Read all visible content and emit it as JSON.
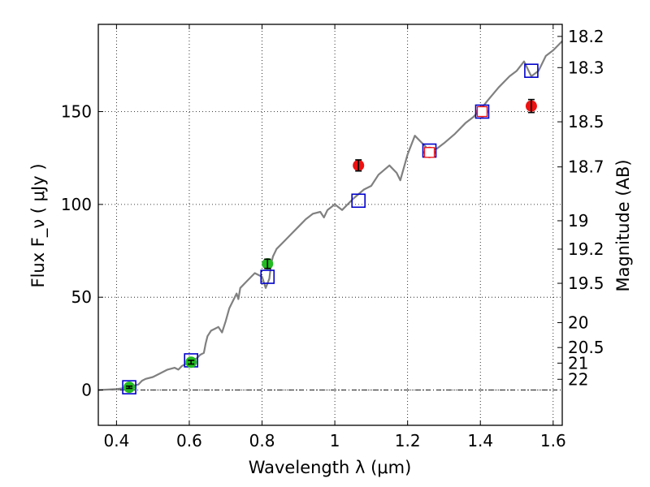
{
  "chart_data": {
    "type": "scatter",
    "title": "",
    "xlabel": "Wavelength  λ (μm)",
    "ylabel": "Flux  F_ν  ( μJy )",
    "ylabel_right": "Magnitude (AB)",
    "xlim": [
      0.35,
      1.625
    ],
    "ylim": [
      -19,
      197
    ],
    "x_ticks": [
      0.4,
      0.6,
      0.8,
      1.0,
      1.2,
      1.4,
      1.6
    ],
    "x_tick_labels": [
      "0.4",
      "0.6",
      "0.8",
      "1",
      "1.2",
      "1.4",
      "1.6"
    ],
    "y_ticks": [
      0,
      50,
      100,
      150
    ],
    "y_tick_labels": [
      "0",
      "50",
      "100",
      "150"
    ],
    "right_ticks": [
      {
        "label": "18.2",
        "flux": 190.5
      },
      {
        "label": "18.3",
        "flux": 173.7
      },
      {
        "label": "18.5",
        "flux": 144.5
      },
      {
        "label": "18.7",
        "flux": 120.2
      },
      {
        "label": "19",
        "flux": 91.2
      },
      {
        "label": "19.2",
        "flux": 75.9
      },
      {
        "label": "19.5",
        "flux": 57.5
      },
      {
        "label": "20",
        "flux": 36.3
      },
      {
        "label": "20.5",
        "flux": 22.9
      },
      {
        "label": "21",
        "flux": 14.5
      },
      {
        "label": "22",
        "flux": 5.8
      }
    ],
    "grid": true,
    "colors": {
      "model": "#808080",
      "synthetic": "#0000cc",
      "optical": "#22bb22",
      "nir": "#ee1111",
      "errorbar": "#000000",
      "hollow_marker_fill": "#ffffff"
    },
    "model_spectrum": {
      "x": [
        0.35,
        0.38,
        0.4,
        0.42,
        0.44,
        0.46,
        0.47,
        0.48,
        0.5,
        0.52,
        0.54,
        0.56,
        0.57,
        0.58,
        0.6,
        0.62,
        0.63,
        0.64,
        0.645,
        0.65,
        0.66,
        0.67,
        0.68,
        0.69,
        0.7,
        0.71,
        0.72,
        0.73,
        0.735,
        0.74,
        0.76,
        0.78,
        0.8,
        0.81,
        0.82,
        0.825,
        0.83,
        0.84,
        0.86,
        0.88,
        0.9,
        0.92,
        0.94,
        0.96,
        0.97,
        0.98,
        1.0,
        1.02,
        1.05,
        1.08,
        1.1,
        1.12,
        1.15,
        1.17,
        1.18,
        1.2,
        1.22,
        1.24,
        1.26,
        1.28,
        1.3,
        1.33,
        1.36,
        1.38,
        1.4,
        1.42,
        1.45,
        1.48,
        1.5,
        1.52,
        1.54,
        1.56,
        1.58,
        1.6,
        1.625
      ],
      "y": [
        0,
        0.3,
        0.5,
        1,
        2,
        3,
        5,
        6,
        7,
        9,
        11,
        12,
        11,
        13,
        15,
        17,
        19,
        20,
        25,
        29,
        32,
        33,
        34,
        31,
        37,
        44,
        48,
        52,
        49,
        55,
        59,
        63,
        61,
        55,
        60,
        68,
        72,
        76,
        80,
        84,
        88,
        92,
        95,
        96,
        93,
        97,
        100,
        97,
        103,
        108,
        110,
        116,
        121,
        117,
        113,
        127,
        137,
        133,
        129,
        130,
        133,
        138,
        144,
        147,
        151,
        156,
        163,
        169,
        172,
        177,
        169,
        172,
        180,
        183,
        188
      ]
    },
    "series": [
      {
        "marker": "hollow-square",
        "color": "#0000cc",
        "x": [
          0.435,
          0.605,
          0.815,
          1.065,
          1.26,
          1.405,
          1.54
        ],
        "y": [
          1.5,
          16,
          61,
          102,
          129,
          150,
          172
        ]
      },
      {
        "marker": "circle",
        "color": "#22bb22",
        "x": [
          0.435,
          0.605,
          0.815
        ],
        "y": [
          1.5,
          15,
          68
        ],
        "yerr": [
          0.6,
          1.0,
          2.5
        ]
      },
      {
        "marker": "circle",
        "color": "#ee1111",
        "x": [
          1.065,
          1.26,
          1.405,
          1.54
        ],
        "y": [
          121,
          128,
          150,
          153
        ],
        "yerr": [
          3,
          1.5,
          1.5,
          3.5
        ]
      },
      {
        "marker": "hollow-square-small",
        "color": "#ee1111",
        "x": [
          1.26,
          1.405
        ],
        "y": [
          128,
          150
        ]
      }
    ]
  }
}
